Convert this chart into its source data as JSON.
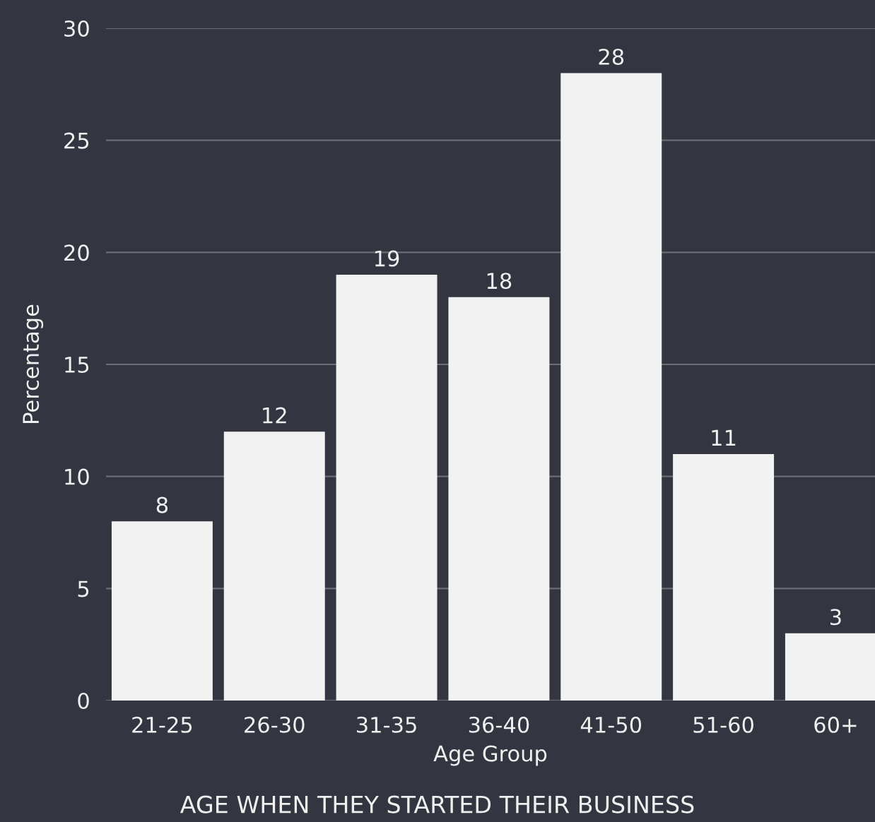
{
  "chart_data": {
    "type": "bar",
    "title": "AGE WHEN THEY STARTED THEIR BUSINESS",
    "xlabel": "Age Group",
    "ylabel": "Percentage",
    "categories": [
      "21-25",
      "26-30",
      "31-35",
      "36-40",
      "41-50",
      "51-60",
      "60+"
    ],
    "values": [
      8,
      12,
      19,
      18,
      28,
      11,
      3
    ],
    "color": "#f2f2f2",
    "ylim": [
      0,
      30
    ],
    "yticks": [
      0,
      5,
      10,
      15,
      20,
      25,
      30
    ],
    "grid": "y",
    "data_labels": true
  }
}
